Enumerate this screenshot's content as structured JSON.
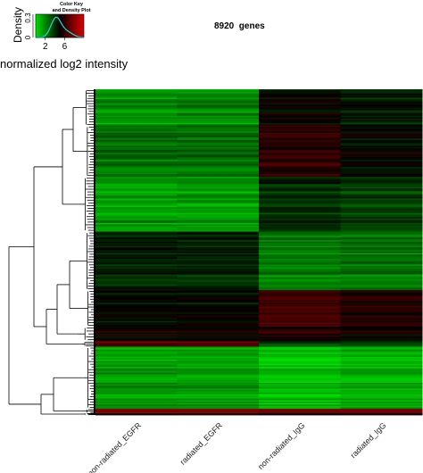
{
  "chart_data": {
    "type": "heatmap",
    "title": "8920  genes",
    "columns": [
      "non-radiated_EGFR",
      "radiated_EGFR",
      "non-radiated_IgG",
      "radiated_IgG"
    ],
    "color_scale": {
      "low": "#00e000",
      "mid": "#000000",
      "high": "#e00000",
      "range": [
        0,
        10
      ]
    },
    "row_clusters": [
      {
        "rows": 1000,
        "values": [
          1.8,
          2.0,
          5.0,
          4.4
        ]
      },
      {
        "rows": 1400,
        "values": [
          2.6,
          2.6,
          6.0,
          5.0
        ]
      },
      {
        "rows": 1500,
        "values": [
          1.5,
          1.6,
          4.0,
          3.6
        ]
      },
      {
        "rows": 1600,
        "values": [
          4.2,
          4.2,
          2.2,
          2.4
        ]
      },
      {
        "rows": 1000,
        "values": [
          4.8,
          4.8,
          6.4,
          5.6
        ]
      },
      {
        "rows": 400,
        "values": [
          5.2,
          5.2,
          5.6,
          5.2
        ]
      },
      {
        "rows": 150,
        "values": [
          7.0,
          7.0,
          3.6,
          3.6
        ]
      },
      {
        "rows": 1700,
        "values": [
          1.6,
          1.6,
          0.8,
          1.2
        ]
      },
      {
        "rows": 120,
        "values": [
          8.2,
          8.2,
          8.2,
          8.2
        ]
      },
      {
        "rows": 50,
        "values": [
          5.0,
          5.0,
          5.0,
          5.0
        ]
      }
    ],
    "color_key": {
      "title": "Color Key\nand Density Plot",
      "xlabel": "normalized log2 intensity",
      "ylabel": "Density",
      "x_ticks": [
        "2",
        "6"
      ],
      "y_ticks": [
        "0",
        "0.3"
      ],
      "density_color": "#00e5ee"
    }
  }
}
